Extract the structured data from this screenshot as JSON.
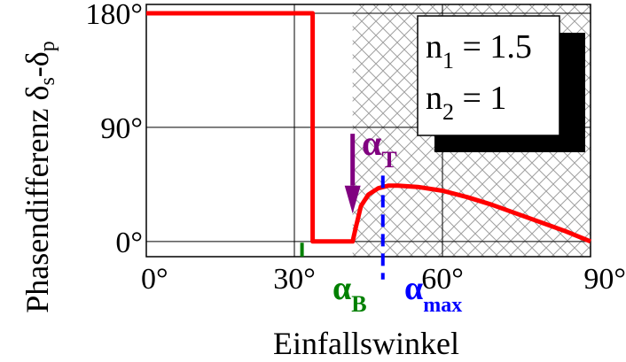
{
  "chart_data": {
    "type": "line",
    "title": "",
    "xlabel": "Einfallswinkel",
    "ylabel": "Phasendifferenz δ",
    "ylabel_sub1": "s",
    "ylabel_mid": "-δ",
    "ylabel_sub2": "p",
    "xlim": [
      0,
      90
    ],
    "ylim": [
      -12,
      187
    ],
    "grid": true,
    "x_ticks": [
      {
        "value": 0,
        "label": "0°"
      },
      {
        "value": 30,
        "label": "30°"
      },
      {
        "value": 60,
        "label": "60°"
      },
      {
        "value": 90,
        "label": "90°"
      }
    ],
    "y_ticks": [
      {
        "value": 0,
        "label": "0°"
      },
      {
        "value": 90,
        "label": "90°"
      },
      {
        "value": 180,
        "label": "180°"
      }
    ],
    "series": [
      {
        "color": "#ff0000",
        "points": [
          [
            0,
            180
          ],
          [
            33.7,
            180
          ],
          [
            33.7,
            0
          ],
          [
            41.8,
            0
          ],
          [
            42.5,
            12
          ],
          [
            43.5,
            28
          ],
          [
            45,
            37
          ],
          [
            47,
            42
          ],
          [
            49,
            44
          ],
          [
            51,
            44
          ],
          [
            55,
            43
          ],
          [
            60,
            40
          ],
          [
            65,
            35
          ],
          [
            70,
            29
          ],
          [
            75,
            22
          ],
          [
            80,
            15
          ],
          [
            85,
            8
          ],
          [
            90,
            0
          ]
        ]
      }
    ],
    "shaded_region": {
      "x_start": 41.8,
      "x_end": 90,
      "pattern": "crosshatch"
    },
    "annotations": [
      {
        "name": "alpha-B",
        "text": "α",
        "sub": "B",
        "x": 33.7,
        "color": "#008000"
      },
      {
        "name": "alpha-T",
        "text": "α",
        "sub": "T",
        "x": 41.8,
        "color": "#800080"
      },
      {
        "name": "alpha-max",
        "text": "α",
        "sub": "max",
        "x": 49,
        "color": "#0000ff"
      }
    ],
    "legend": {
      "placement": "top-right",
      "lines": [
        {
          "main": "n",
          "sub": "1",
          "rest": " = 1.5"
        },
        {
          "main": "n",
          "sub": "2",
          "rest": " = 1"
        }
      ]
    }
  }
}
